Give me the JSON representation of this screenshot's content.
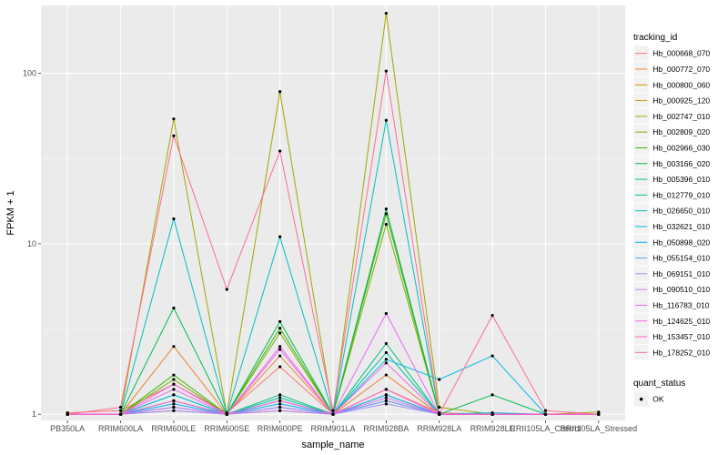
{
  "chart_data": {
    "type": "line",
    "xlabel": "sample_name",
    "ylabel": "FPKM + 1",
    "y_scale": "log10",
    "ylim": [
      0.92,
      250
    ],
    "y_ticks": [
      1,
      10,
      100
    ],
    "y_tick_labels": [
      "1",
      "10",
      "100"
    ],
    "categories": [
      "PB350LA",
      "RRIM600LA",
      "RRIM600LE",
      "RRIM600SE",
      "RRIM600PE",
      "RRIM901LA",
      "RRIM928BA",
      "RRIM928LA",
      "RRIM928LE",
      "RRII105LA_Control",
      "RRII105LA_Stressed"
    ],
    "grid": true,
    "background": "#EBEBEB",
    "legend_placement": "right",
    "legend_title": "tracking_id",
    "legend2_title": "quant_status",
    "legend2_entries": [
      "OK"
    ],
    "series": [
      {
        "name": "Hb_000668_070",
        "color": "#F8766D",
        "values": [
          1.02,
          1.05,
          1.5,
          1.02,
          1.9,
          1.0,
          1.4,
          1.02,
          1.0,
          1.0,
          1.0
        ]
      },
      {
        "name": "Hb_000772_070",
        "color": "#EA8331",
        "values": [
          1.0,
          1.0,
          2.5,
          1.0,
          2.2,
          1.0,
          1.7,
          1.0,
          1.0,
          1.0,
          1.0
        ]
      },
      {
        "name": "Hb_000800_060",
        "color": "#D89000",
        "values": [
          1.0,
          1.0,
          1.1,
          1.0,
          1.1,
          1.0,
          1.3,
          1.0,
          1.0,
          1.0,
          1.0
        ]
      },
      {
        "name": "Hb_000925_120",
        "color": "#C09B00",
        "values": [
          1.0,
          1.0,
          1.05,
          1.0,
          1.05,
          1.0,
          1.2,
          1.0,
          1.0,
          1.0,
          1.0
        ]
      },
      {
        "name": "Hb_002747_010",
        "color": "#A3A500",
        "values": [
          1.0,
          1.0,
          54,
          1.0,
          78,
          1.0,
          225,
          1.1,
          1.0,
          1.0,
          1.03
        ]
      },
      {
        "name": "Hb_002809_020",
        "color": "#7CAE00",
        "values": [
          1.0,
          1.0,
          1.6,
          1.0,
          3.0,
          1.0,
          13,
          1.0,
          1.0,
          1.0,
          1.0
        ]
      },
      {
        "name": "Hb_002966_030",
        "color": "#39B600",
        "values": [
          1.0,
          1.0,
          1.7,
          1.0,
          3.2,
          1.0,
          15,
          1.0,
          1.0,
          1.0,
          1.0
        ]
      },
      {
        "name": "Hb_003166_020",
        "color": "#00BB4E",
        "values": [
          1.0,
          1.0,
          4.2,
          1.0,
          3.5,
          1.0,
          16,
          1.0,
          1.3,
          1.0,
          1.0
        ]
      },
      {
        "name": "Hb_005396_010",
        "color": "#00BF7D",
        "values": [
          1.0,
          1.0,
          1.2,
          1.0,
          1.3,
          1.0,
          2.6,
          1.0,
          1.0,
          1.0,
          1.0
        ]
      },
      {
        "name": "Hb_012779_010",
        "color": "#00C1A3",
        "values": [
          1.0,
          1.0,
          1.3,
          1.0,
          1.25,
          1.0,
          2.3,
          1.0,
          1.0,
          1.0,
          1.0
        ]
      },
      {
        "name": "Hb_026650_010",
        "color": "#00BFC4",
        "values": [
          1.0,
          1.0,
          14,
          1.0,
          11,
          1.0,
          53,
          1.0,
          1.02,
          1.0,
          1.0
        ]
      },
      {
        "name": "Hb_032621_010",
        "color": "#00B9E3",
        "values": [
          1.0,
          1.0,
          1.3,
          1.0,
          1.2,
          1.0,
          2.1,
          1.6,
          2.2,
          1.0,
          1.0
        ]
      },
      {
        "name": "Hb_050898_020",
        "color": "#00ADFA",
        "values": [
          1.0,
          1.0,
          1.15,
          1.0,
          1.15,
          1.0,
          1.3,
          1.0,
          1.0,
          1.0,
          1.0
        ]
      },
      {
        "name": "Hb_055154_010",
        "color": "#619CFF",
        "values": [
          1.0,
          1.0,
          1.1,
          1.0,
          1.1,
          1.0,
          1.2,
          1.0,
          1.0,
          1.0,
          1.0
        ]
      },
      {
        "name": "Hb_069151_010",
        "color": "#9F8CFF",
        "values": [
          1.0,
          1.0,
          1.05,
          1.0,
          1.1,
          1.0,
          1.15,
          1.0,
          1.0,
          1.0,
          1.0
        ]
      },
      {
        "name": "Hb_090510_010",
        "color": "#C77CFF",
        "values": [
          1.0,
          1.0,
          1.1,
          1.0,
          1.05,
          1.0,
          1.25,
          1.0,
          1.0,
          1.0,
          1.0
        ]
      },
      {
        "name": "Hb_116783_010",
        "color": "#E76BF3",
        "values": [
          1.0,
          1.0,
          1.4,
          1.0,
          2.5,
          1.0,
          3.9,
          1.0,
          1.0,
          1.0,
          1.0
        ]
      },
      {
        "name": "Hb_124625_010",
        "color": "#F564E3",
        "values": [
          1.0,
          1.0,
          1.5,
          1.0,
          2.4,
          1.0,
          2.0,
          1.0,
          1.0,
          1.0,
          1.0
        ]
      },
      {
        "name": "Hb_153457_010",
        "color": "#FF61C3",
        "values": [
          1.0,
          1.0,
          1.2,
          1.0,
          1.2,
          1.0,
          1.4,
          1.0,
          1.0,
          1.0,
          1.0
        ]
      },
      {
        "name": "Hb_178252_010",
        "color": "#FF6C91",
        "values": [
          1.0,
          1.1,
          43,
          5.4,
          35,
          1.05,
          103,
          1.0,
          3.8,
          1.05,
          1.0
        ]
      }
    ]
  }
}
